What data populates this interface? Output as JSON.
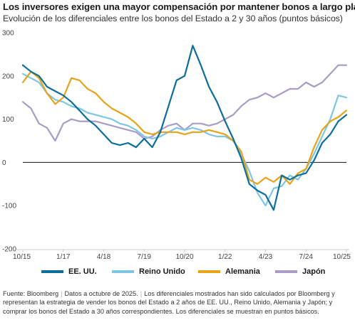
{
  "header": {
    "title": "Los inversores exigen una mayor compensación por mantener bonos a largo plazo",
    "subtitle": "Evolución de los diferenciales entre los bonos del Estado a 2 y 30 años (puntos básicos)"
  },
  "chart_data": {
    "type": "line",
    "title": "Los inversores exigen una mayor compensación por mantener bonos a largo plazo",
    "subtitle": "Evolución de los diferenciales entre los bonos del Estado a 2 y 30 años (puntos básicos)",
    "xlabel": "",
    "ylabel": "",
    "ylim": [
      -200,
      300
    ],
    "yticks": [
      300,
      200,
      100,
      0,
      -100,
      -200
    ],
    "ytick_labels": [
      "300",
      "200",
      "100",
      "0",
      "-100",
      "-200"
    ],
    "xtick_labels": [
      "10/15",
      "1/17",
      "4/18",
      "7/19",
      "10/20",
      "1/22",
      "4/23",
      "7/24",
      "10/25"
    ],
    "x": [
      "10/15",
      "1/16",
      "4/16",
      "7/16",
      "10/16",
      "1/17",
      "4/17",
      "7/17",
      "10/17",
      "1/18",
      "4/18",
      "7/18",
      "10/18",
      "1/19",
      "4/19",
      "7/19",
      "10/19",
      "1/20",
      "4/20",
      "7/20",
      "10/20",
      "1/21",
      "4/21",
      "7/21",
      "10/21",
      "1/22",
      "4/22",
      "7/22",
      "10/22",
      "1/23",
      "4/23",
      "7/23",
      "10/23",
      "1/24",
      "4/24",
      "7/24",
      "10/24",
      "1/25",
      "4/25",
      "7/25",
      "10/25"
    ],
    "zero_line": true,
    "grid": false,
    "legend_position": "bottom",
    "series": [
      {
        "name": "EE. UU.",
        "color": "#0b6e9c",
        "values": [
          225,
          210,
          200,
          175,
          165,
          155,
          140,
          120,
          100,
          85,
          65,
          45,
          40,
          45,
          35,
          55,
          35,
          70,
          130,
          190,
          200,
          270,
          225,
          175,
          140,
          95,
          55,
          10,
          -50,
          -65,
          -75,
          -110,
          -30,
          -40,
          -30,
          -25,
          5,
          45,
          65,
          95,
          110
        ]
      },
      {
        "name": "Reino Unido",
        "color": "#7cc6e8",
        "values": [
          205,
          195,
          185,
          160,
          145,
          140,
          130,
          125,
          115,
          110,
          105,
          100,
          90,
          85,
          75,
          60,
          55,
          60,
          70,
          80,
          75,
          80,
          75,
          65,
          60,
          60,
          50,
          20,
          -20,
          -70,
          -100,
          -60,
          -55,
          -30,
          -40,
          -15,
          20,
          60,
          100,
          155,
          150
        ]
      },
      {
        "name": "Alemania",
        "color": "#e8a317",
        "values": [
          185,
          210,
          195,
          160,
          135,
          150,
          195,
          190,
          170,
          160,
          140,
          125,
          115,
          105,
          90,
          70,
          65,
          70,
          70,
          70,
          65,
          70,
          70,
          75,
          70,
          65,
          50,
          25,
          -40,
          -50,
          -35,
          -45,
          -30,
          -50,
          -25,
          -15,
          35,
          75,
          95,
          105,
          120
        ]
      },
      {
        "name": "Japón",
        "color": "#a99cc7",
        "values": [
          140,
          125,
          90,
          80,
          50,
          90,
          100,
          95,
          95,
          95,
          90,
          85,
          80,
          75,
          70,
          55,
          60,
          75,
          85,
          90,
          75,
          90,
          90,
          85,
          90,
          100,
          110,
          130,
          145,
          150,
          160,
          150,
          160,
          170,
          170,
          185,
          175,
          185,
          205,
          225,
          225
        ]
      }
    ]
  },
  "source": {
    "label": "Fuente: Bloomberg",
    "date": "Datos a octubre de 2025.",
    "note": "Los diferenciales mostrados han sido calculados por Bloomberg y representan la estrategia de vender los bonos del Estado a 2 años de EE. UU., Reino Unido, Alemania y Japón; y comprar los bonos del Estado a 30 años correspondientes. Los diferenciales se muestran en puntos básicos."
  }
}
